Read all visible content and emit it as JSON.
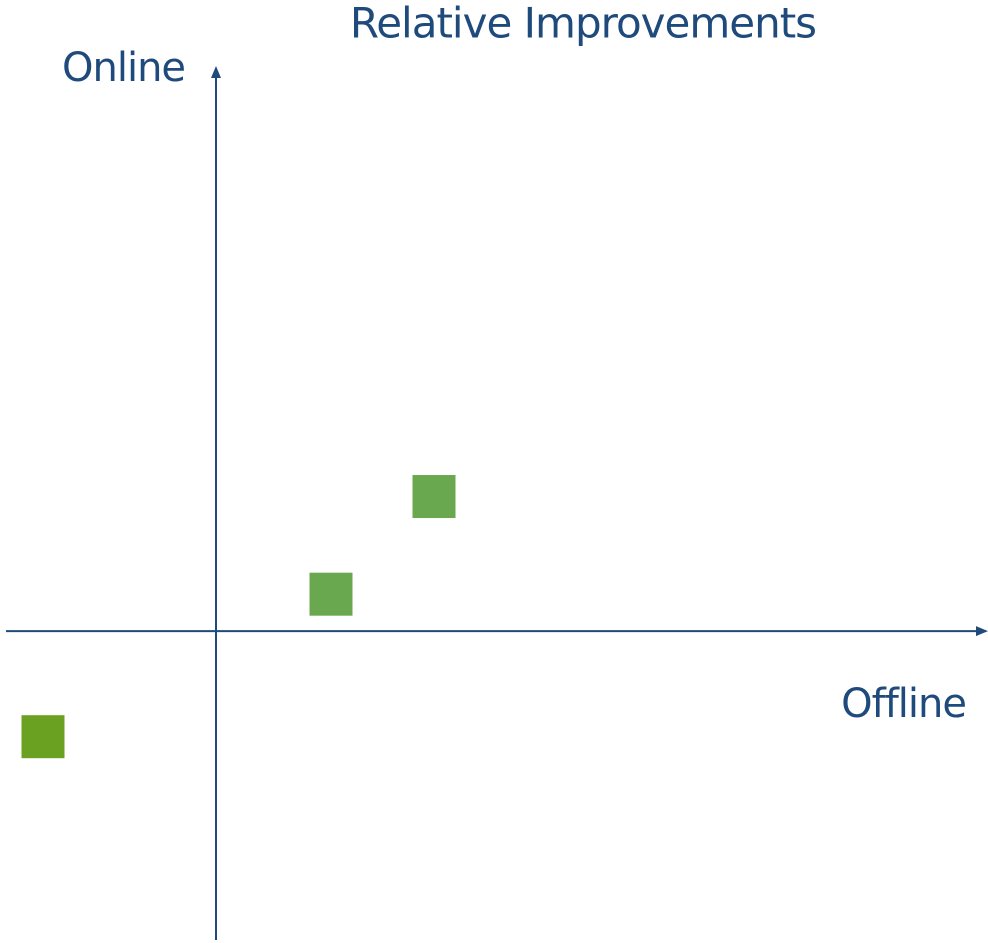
{
  "chart_data": {
    "type": "scatter",
    "title": "Relative Improvements",
    "x_label": "Offline",
    "y_label": "Online",
    "x": [
      2.18,
      1.15,
      -1.73
    ],
    "values": [
      1.35,
      0.37,
      -1.06
    ],
    "colors": [
      "#6aa84f",
      "#6aa84f",
      "#6aa121"
    ],
    "axis_color": "#1f4a7c",
    "xlim": [
      -2.1,
      7.7
    ],
    "ylim": [
      -3.1,
      5.65
    ]
  }
}
